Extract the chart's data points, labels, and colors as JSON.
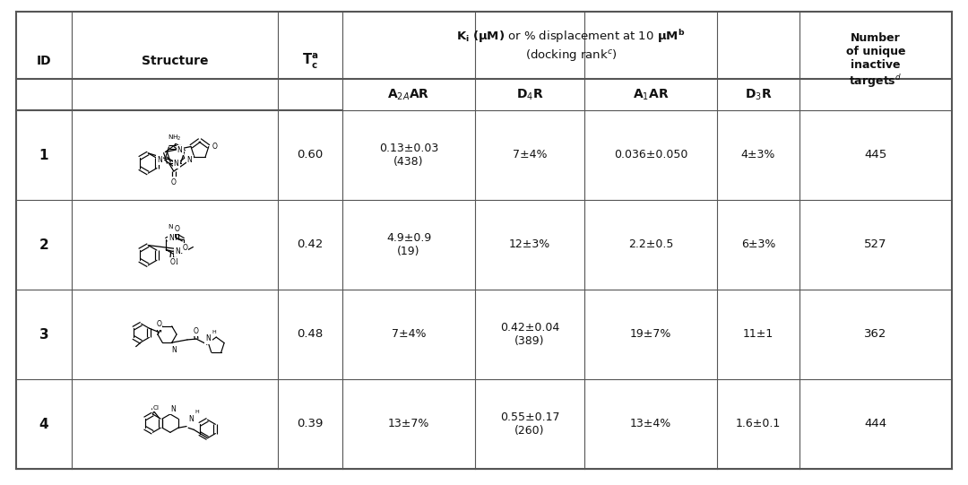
{
  "background_color": "#ffffff",
  "table_data": [
    {
      "id": "1",
      "tc": "0.60",
      "a2aar": "0.13±0.03\n(438)",
      "d4r": "7±4%",
      "a1ar": "0.036±0.050",
      "d3r": "4±3%",
      "inactive": "445"
    },
    {
      "id": "2",
      "tc": "0.42",
      "a2aar": "4.9±0.9\n(19)",
      "d4r": "12±3%",
      "a1ar": "2.2±0.5",
      "d3r": "6±3%",
      "inactive": "527"
    },
    {
      "id": "3",
      "tc": "0.48",
      "a2aar": "7±4%",
      "d4r": "0.42±0.04\n(389)",
      "a1ar": "19±7%",
      "d3r": "11±1",
      "inactive": "362"
    },
    {
      "id": "4",
      "tc": "0.39",
      "a2aar": "13±7%",
      "d4r": "0.55±0.17\n(260)",
      "a1ar": "13±4%",
      "d3r": "1.6±0.1",
      "inactive": "444"
    }
  ]
}
